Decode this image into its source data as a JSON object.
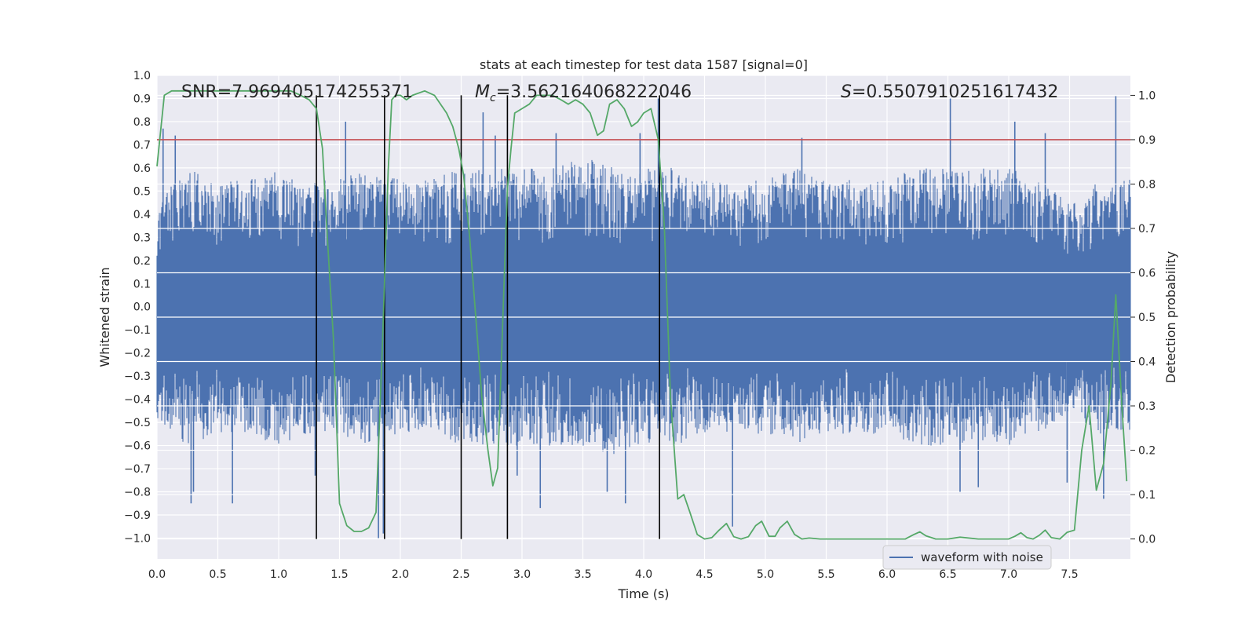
{
  "chart_data": {
    "type": "line",
    "title": "stats at each timestep for test data 1587 [signal=0]",
    "xlabel": "Time (s)",
    "ylabel": "Whitened strain",
    "y2label": "Detection probability",
    "xlim": [
      0.0,
      8.0
    ],
    "ylim": [
      -1.09,
      1.0
    ],
    "y2lim": [
      -0.045,
      1.045
    ],
    "xticks": [
      "0.0",
      "0.5",
      "1.0",
      "1.5",
      "2.0",
      "2.5",
      "3.0",
      "3.5",
      "4.0",
      "4.5",
      "5.0",
      "5.5",
      "6.0",
      "6.5",
      "7.0",
      "7.5"
    ],
    "yticks": [
      "1.0",
      "0.9",
      "0.8",
      "0.7",
      "0.6",
      "0.5",
      "0.4",
      "0.3",
      "0.2",
      "0.1",
      "0.0",
      "−0.1",
      "−0.2",
      "−0.3",
      "−0.4",
      "−0.5",
      "−0.6",
      "−0.7",
      "−0.8",
      "−0.9",
      "−1.0"
    ],
    "y2ticks": [
      "1.0",
      "0.9",
      "0.8",
      "0.7",
      "0.6",
      "0.5",
      "0.4",
      "0.3",
      "0.2",
      "0.1",
      "0.0"
    ],
    "grid": true,
    "legend": {
      "entries": [
        "waveform with noise"
      ],
      "location": "lower center-right"
    },
    "annotations": {
      "snr_prefix": "SNR=",
      "snr_value": "7.969405174255371",
      "mc_symbol": "M",
      "mc_sub": "c",
      "mc_value": "=3.562164068222046",
      "s_symbol": "S",
      "s_value": "=0.5507910251617432"
    },
    "threshold_y2": 0.9,
    "vertical_lines_x": [
      1.31,
      1.87,
      2.5,
      2.88,
      4.13
    ],
    "waveform_envelope": {
      "x": [
        0.0,
        0.25,
        0.5,
        0.75,
        1.0,
        1.25,
        1.5,
        1.75,
        2.0,
        2.25,
        2.5,
        2.75,
        3.0,
        3.25,
        3.5,
        3.75,
        4.0,
        4.25,
        4.5,
        4.75,
        5.0,
        5.25,
        5.5,
        5.75,
        6.0,
        6.25,
        6.5,
        6.75,
        7.0,
        7.25,
        7.5,
        7.75,
        8.0
      ],
      "upper": [
        0.45,
        0.6,
        0.55,
        0.55,
        0.6,
        0.55,
        0.55,
        0.6,
        0.55,
        0.55,
        0.6,
        0.6,
        0.6,
        0.6,
        0.65,
        0.6,
        0.6,
        0.6,
        0.55,
        0.55,
        0.55,
        0.6,
        0.55,
        0.55,
        0.55,
        0.6,
        0.6,
        0.6,
        0.6,
        0.55,
        0.45,
        0.55,
        0.55
      ],
      "lower": [
        -0.5,
        -0.6,
        -0.55,
        -0.55,
        -0.6,
        -0.55,
        -0.55,
        -0.6,
        -0.55,
        -0.55,
        -0.6,
        -0.6,
        -0.6,
        -0.6,
        -0.6,
        -0.65,
        -0.6,
        -0.6,
        -0.55,
        -0.55,
        -0.55,
        -0.6,
        -0.55,
        -0.55,
        -0.55,
        -0.6,
        -0.6,
        -0.6,
        -0.6,
        -0.55,
        -0.45,
        -0.55,
        -0.55
      ],
      "color": "#4c72b0"
    },
    "waveform_spikes": {
      "x": [
        0.05,
        0.15,
        0.28,
        0.3,
        0.62,
        1.3,
        1.55,
        1.82,
        1.86,
        2.68,
        2.78,
        2.96,
        3.15,
        3.28,
        3.7,
        3.85,
        3.97,
        4.12,
        4.73,
        5.3,
        6.52,
        6.6,
        6.75,
        7.05,
        7.3,
        7.48,
        7.78,
        7.88
      ],
      "y": [
        0.77,
        0.74,
        -0.85,
        -0.8,
        -0.85,
        -0.73,
        0.8,
        -1.0,
        -0.98,
        0.84,
        0.74,
        -0.73,
        -0.87,
        0.75,
        -0.8,
        -0.85,
        0.75,
        0.9,
        -0.95,
        0.73,
        0.9,
        -0.8,
        -0.78,
        0.8,
        0.75,
        -0.76,
        -0.83,
        0.91
      ]
    },
    "series": [
      {
        "name": "detection probability",
        "axis": "right",
        "color": "#55a868",
        "x": [
          0.0,
          0.06,
          0.12,
          0.2,
          0.4,
          0.6,
          0.8,
          1.0,
          1.1,
          1.18,
          1.25,
          1.31,
          1.36,
          1.4,
          1.45,
          1.5,
          1.56,
          1.62,
          1.68,
          1.74,
          1.8,
          1.85,
          1.9,
          1.93,
          1.96,
          2.0,
          2.05,
          2.1,
          2.2,
          2.28,
          2.33,
          2.38,
          2.43,
          2.48,
          2.52,
          2.57,
          2.62,
          2.67,
          2.72,
          2.76,
          2.8,
          2.85,
          2.88,
          2.91,
          2.94,
          3.0,
          3.06,
          3.12,
          3.18,
          3.25,
          3.32,
          3.38,
          3.44,
          3.5,
          3.56,
          3.62,
          3.67,
          3.72,
          3.78,
          3.84,
          3.9,
          3.95,
          4.0,
          4.06,
          4.12,
          4.17,
          4.22,
          4.28,
          4.33,
          4.38,
          4.44,
          4.5,
          4.56,
          4.62,
          4.68,
          4.74,
          4.8,
          4.86,
          4.92,
          4.97,
          5.03,
          5.08,
          5.12,
          5.18,
          5.24,
          5.3,
          5.36,
          5.45,
          5.6,
          5.8,
          6.0,
          6.15,
          6.22,
          6.27,
          6.32,
          6.4,
          6.5,
          6.6,
          6.75,
          6.9,
          7.0,
          7.05,
          7.1,
          7.15,
          7.2,
          7.25,
          7.3,
          7.35,
          7.42,
          7.48,
          7.54,
          7.6,
          7.66,
          7.72,
          7.78,
          7.84,
          7.88,
          7.93,
          7.97
        ],
        "y": [
          0.84,
          1.0,
          1.01,
          1.01,
          1.01,
          1.01,
          1.01,
          1.01,
          1.01,
          1.0,
          0.99,
          0.97,
          0.88,
          0.68,
          0.45,
          0.08,
          0.03,
          0.017,
          0.017,
          0.025,
          0.06,
          0.42,
          0.83,
          0.99,
          1.0,
          1.0,
          0.99,
          1.0,
          1.01,
          1.0,
          0.98,
          0.96,
          0.93,
          0.88,
          0.82,
          0.68,
          0.5,
          0.32,
          0.2,
          0.12,
          0.16,
          0.56,
          0.79,
          0.88,
          0.96,
          0.97,
          0.98,
          1.0,
          1.0,
          1.0,
          0.99,
          0.98,
          0.99,
          0.98,
          0.96,
          0.91,
          0.92,
          0.98,
          0.99,
          0.97,
          0.93,
          0.94,
          0.96,
          0.97,
          0.9,
          0.7,
          0.32,
          0.09,
          0.1,
          0.06,
          0.01,
          0.0,
          0.003,
          0.02,
          0.035,
          0.005,
          0.0,
          0.005,
          0.03,
          0.04,
          0.006,
          0.006,
          0.025,
          0.04,
          0.01,
          0.0,
          0.002,
          0.0,
          0.0,
          0.0,
          0.0,
          0.0,
          0.01,
          0.016,
          0.007,
          0.0,
          0.0,
          0.004,
          0.0,
          0.0,
          0.0,
          0.006,
          0.014,
          0.003,
          0.0,
          0.008,
          0.02,
          0.003,
          0.0,
          0.015,
          0.02,
          0.2,
          0.3,
          0.11,
          0.17,
          0.35,
          0.55,
          0.3,
          0.13
        ]
      }
    ]
  }
}
